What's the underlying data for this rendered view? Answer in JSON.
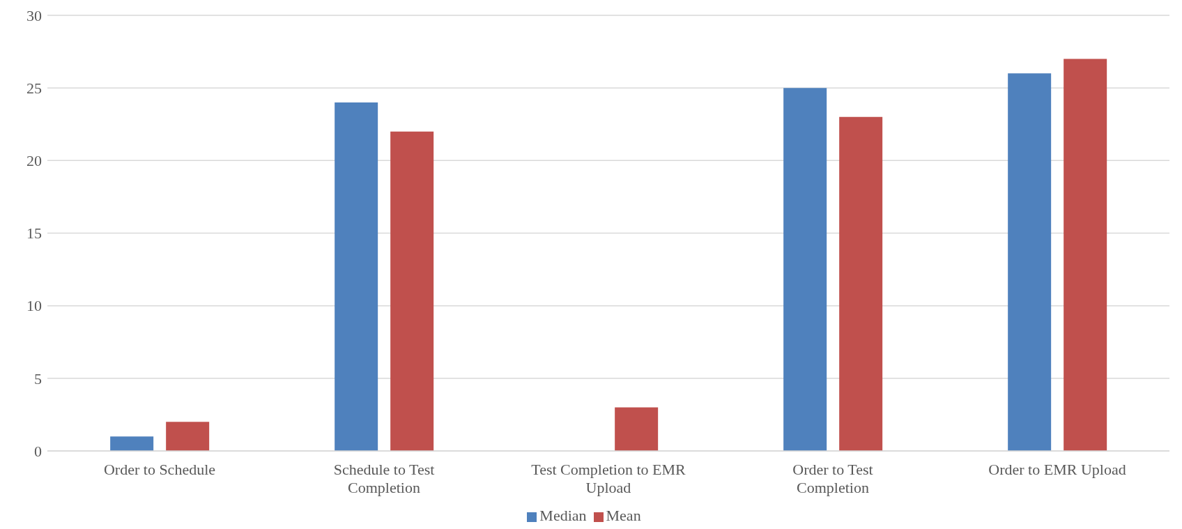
{
  "chart_data": {
    "type": "bar",
    "categories": [
      "Order to Schedule",
      "Schedule to Test Completion",
      "Test Completion to EMR Upload",
      "Order to Test Completion",
      "Order to EMR Upload"
    ],
    "series": [
      {
        "name": "Median",
        "color": "#4f81bd",
        "values": [
          1,
          24,
          0,
          25,
          26
        ]
      },
      {
        "name": "Mean",
        "color": "#c0504d",
        "values": [
          2,
          22,
          3,
          23,
          27
        ]
      }
    ],
    "ylim": [
      0,
      30
    ],
    "yticks": [
      0,
      5,
      10,
      15,
      20,
      25,
      30
    ],
    "grid": "y",
    "legend": "bottom"
  }
}
